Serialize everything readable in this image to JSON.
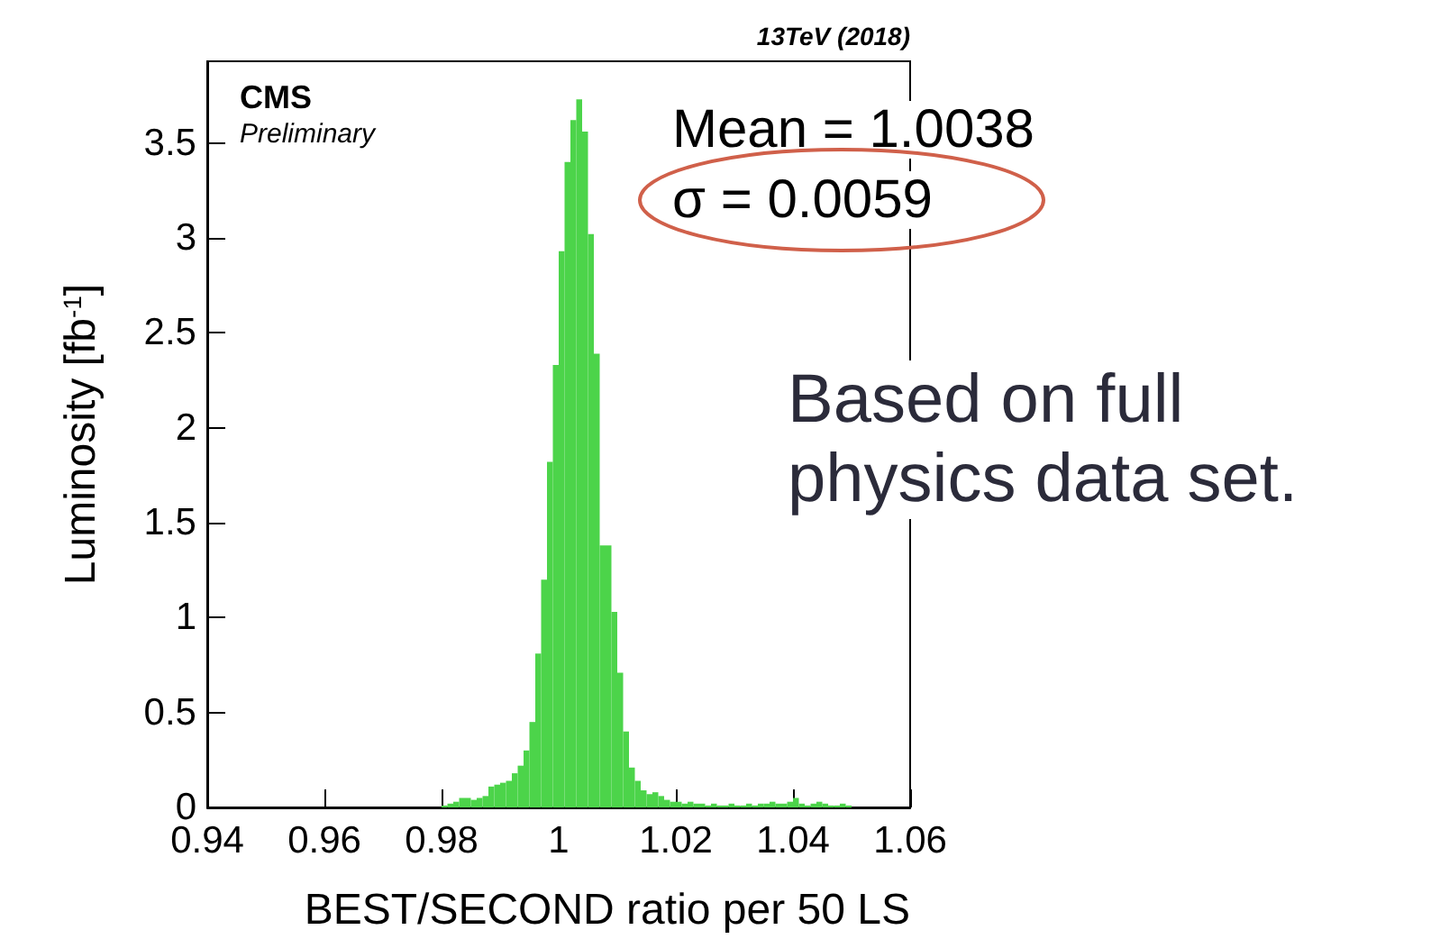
{
  "chart_data": {
    "type": "histogram",
    "xlabel": "BEST/SECOND ratio per 50 LS",
    "ylabel": "Luminosity [fb$^{-1}$]",
    "color": "#4cd44a",
    "annotations": [
      "CMS",
      "Preliminary",
      "13TeV (2018)",
      "Mean = 1.0038",
      "σ = 0.0059",
      "Based on full physics data set."
    ],
    "bins": [
      0.98,
      0.981,
      0.982,
      0.983,
      0.984,
      0.985,
      0.986,
      0.987,
      0.988,
      0.989,
      0.99,
      0.991,
      0.992,
      0.993,
      0.994,
      0.995,
      0.996,
      0.997,
      0.998,
      0.999,
      1.0,
      1.001,
      1.002,
      1.003,
      1.004,
      1.005,
      1.006,
      1.007,
      1.008,
      1.009,
      1.01,
      1.011,
      1.012,
      1.013,
      1.014,
      1.015,
      1.016,
      1.017,
      1.018,
      1.019,
      1.02,
      1.021,
      1.022,
      1.023,
      1.024,
      1.025,
      1.026,
      1.027,
      1.028,
      1.029,
      1.03,
      1.031,
      1.032,
      1.033,
      1.034,
      1.035,
      1.036,
      1.037,
      1.038,
      1.039,
      1.04,
      1.041,
      1.042,
      1.043,
      1.044,
      1.045,
      1.046,
      1.047,
      1.048,
      1.049,
      1.05
    ],
    "values": [
      0.01,
      0.02,
      0.03,
      0.05,
      0.05,
      0.04,
      0.05,
      0.06,
      0.11,
      0.12,
      0.13,
      0.14,
      0.18,
      0.22,
      0.3,
      0.45,
      0.81,
      1.2,
      1.82,
      2.33,
      2.93,
      3.4,
      3.62,
      3.73,
      3.56,
      3.02,
      2.39,
      1.38,
      1.38,
      1.03,
      0.71,
      0.4,
      0.21,
      0.14,
      0.09,
      0.07,
      0.08,
      0.06,
      0.04,
      0.03,
      0.03,
      0.02,
      0.03,
      0.02,
      0.02,
      0.01,
      0.02,
      0.01,
      0.01,
      0.02,
      0.01,
      0.01,
      0.02,
      0.01,
      0.02,
      0.02,
      0.03,
      0.02,
      0.02,
      0.03,
      0.05,
      0.02,
      0.01,
      0.02,
      0.03,
      0.02,
      0.01,
      0.01,
      0.02,
      0.01
    ],
    "xlim": [
      0.94,
      1.06
    ],
    "xticks": [
      0.94,
      0.96,
      0.98,
      1,
      1.02,
      1.04,
      1.06
    ],
    "ylim": [
      0,
      3.93
    ],
    "yticks": [
      0,
      0.5,
      1,
      1.5,
      2,
      2.5,
      3,
      3.5
    ]
  }
}
